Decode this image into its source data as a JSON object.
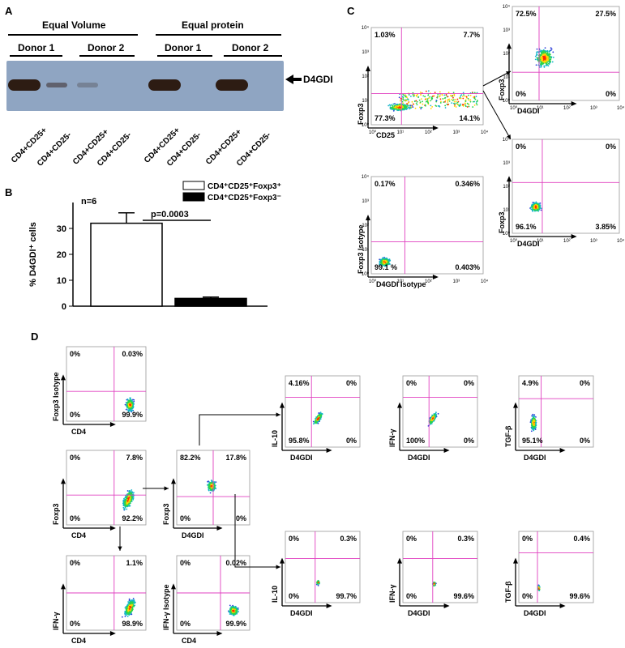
{
  "panel_labels": {
    "a": "A",
    "b": "B",
    "c": "C",
    "d": "D"
  },
  "western": {
    "group_left": "Equal Volume",
    "group_right": "Equal protein",
    "donors": [
      "Donor 1",
      "Donor 2",
      "Donor 1",
      "Donor 2"
    ],
    "band_label": "D4GDI",
    "lanes": [
      "CD4+CD25+",
      "CD4+CD25-",
      "CD4+CD25+",
      "CD4+CD25-",
      "CD4+CD25+",
      "CD4+CD25-",
      "CD4+CD25+",
      "CD4+CD25-"
    ],
    "band_intensity": [
      1.0,
      0.35,
      0.05,
      0.0,
      1.0,
      0.0,
      1.0,
      0.0
    ]
  },
  "chart_data": {
    "type": "bar",
    "categories": [
      "CD4+CD25+Foxp3+",
      "CD4+CD25+Foxp3-"
    ],
    "values": [
      32,
      3
    ],
    "errors": [
      4,
      0.5
    ],
    "ylim": [
      0,
      40
    ],
    "yticks": [
      "0",
      "10",
      "20",
      "30"
    ],
    "ylabel": "% D4GDI⁺ cells",
    "annotation_n": "n=6",
    "annotation_p": "p=0.0003",
    "legend": [
      "CD4⁺CD25⁺Foxp3⁺",
      "CD4⁺CD25⁺Foxp3⁻"
    ]
  },
  "flow_c": [
    {
      "x": "CD25",
      "y": "Foxp3",
      "q": [
        "1.03%",
        "7.7%",
        "77.3%",
        "14.1%"
      ]
    },
    {
      "x": "D4GDI Isotype",
      "y": "Foxp3 Isotype",
      "q": [
        "0.17%",
        "0.346%",
        "99.1 %",
        "0.403%"
      ]
    },
    {
      "x": "D4GDI",
      "y": "Foxp3",
      "q": [
        "72.5%",
        "27.5%",
        "0%",
        "0%"
      ]
    },
    {
      "x": "D4GDI",
      "y": "Foxp3",
      "q": [
        "0%",
        "0%",
        "96.1%",
        "3.85%"
      ]
    }
  ],
  "flow_d": [
    {
      "x": "CD4",
      "y": "Foxp3 Isotype",
      "q": [
        "0%",
        "0.03%",
        "0%",
        "99.9%"
      ]
    },
    {
      "x": "CD4",
      "y": "Foxp3",
      "q": [
        "0%",
        "7.8%",
        "0%",
        "92.2%"
      ]
    },
    {
      "x": "CD4",
      "y": "IFN-γ",
      "q": [
        "0%",
        "1.1%",
        "0%",
        "98.9%"
      ]
    },
    {
      "x": "D4GDI",
      "y": "Foxp3",
      "q": [
        "82.2%",
        "17.8%",
        "0%",
        "0%"
      ]
    },
    {
      "x": "CD4",
      "y": "IFN-γ Isotype",
      "q": [
        "0%",
        "0.02%",
        "0%",
        "99.9%"
      ]
    },
    {
      "x": "D4GDI",
      "y": "IL-10",
      "q": [
        "4.16%",
        "0%",
        "95.8%",
        "0%"
      ]
    },
    {
      "x": "D4GDI",
      "y": "IFN-γ",
      "q": [
        "0%",
        "0%",
        "100%",
        "0%"
      ]
    },
    {
      "x": "D4GDI",
      "y": "TGF-β",
      "q": [
        "4.9%",
        "0%",
        "95.1%",
        "0%"
      ]
    },
    {
      "x": "D4GDI",
      "y": "IL-10",
      "q": [
        "0%",
        "0.3%",
        "0%",
        "99.7%"
      ]
    },
    {
      "x": "D4GDI",
      "y": "IFN-γ",
      "q": [
        "0%",
        "0.3%",
        "0%",
        "99.6%"
      ]
    },
    {
      "x": "D4GDI",
      "y": "TGF-β",
      "q": [
        "0%",
        "0.4%",
        "0%",
        "99.6%"
      ]
    }
  ],
  "decade_ticks": [
    "10⁰",
    "10¹",
    "10²",
    "10³",
    "10⁴"
  ]
}
